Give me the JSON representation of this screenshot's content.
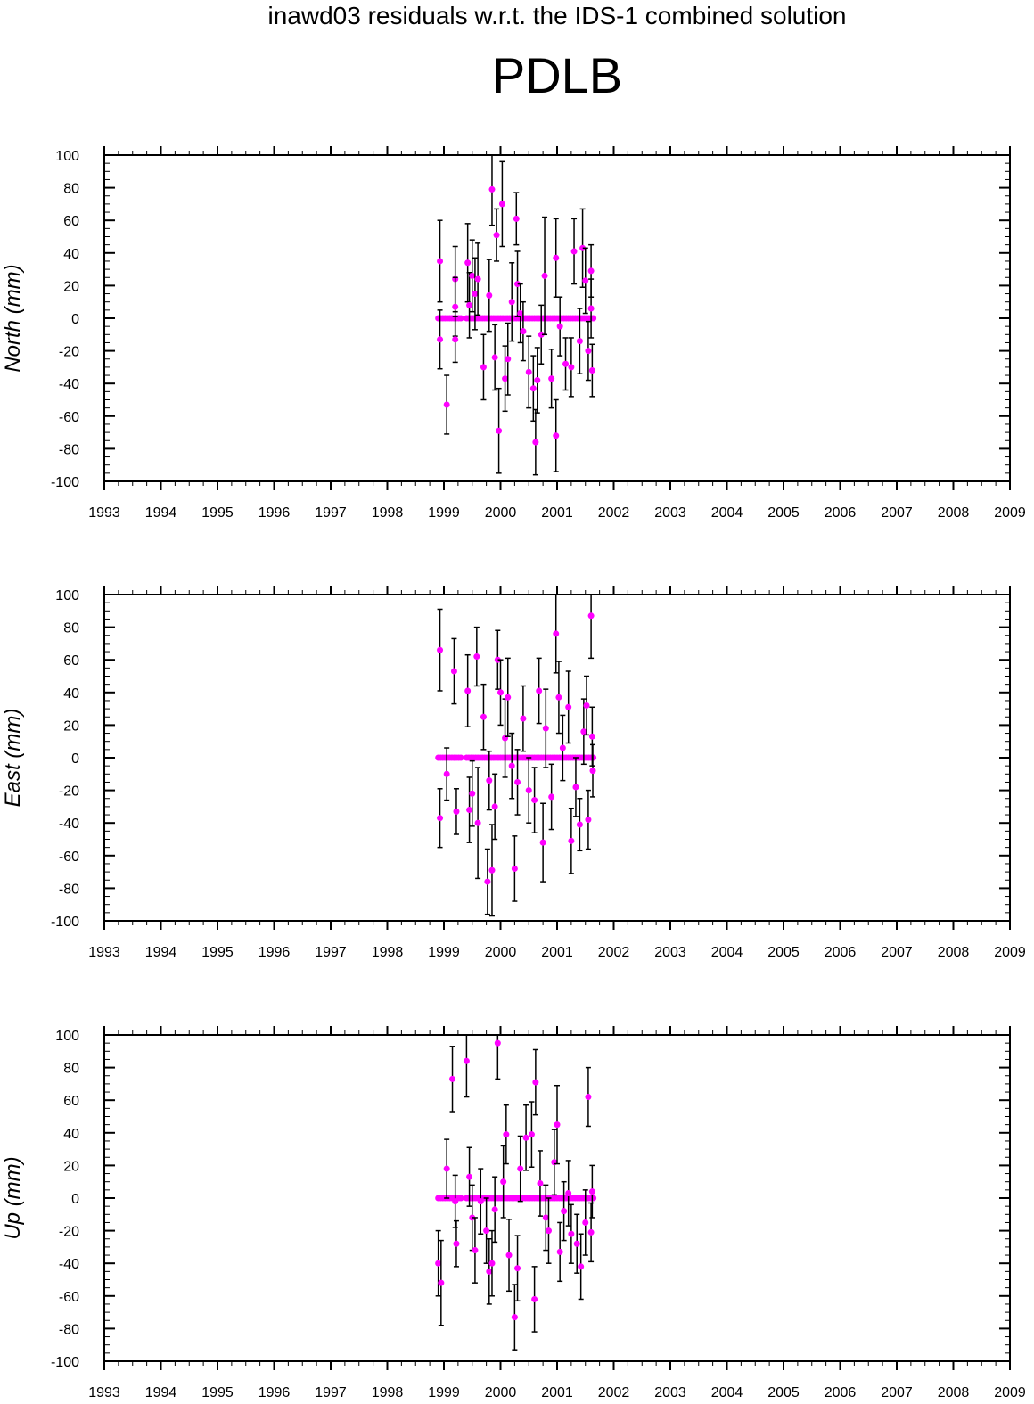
{
  "title": "inawd03 residuals w.r.t. the IDS-1 combined solution",
  "station": "PDLB",
  "colors": {
    "point": "#ff00ff",
    "errorbar": "#000000",
    "axis": "#000000"
  },
  "chart_data": [
    {
      "type": "scatter",
      "ylabel": "North (mm)",
      "xlim": [
        1993,
        2009
      ],
      "ylim": [
        -100,
        100
      ],
      "x_ticks": [
        "1993",
        "1994",
        "1995",
        "1996",
        "1997",
        "1998",
        "1999",
        "2000",
        "2001",
        "2002",
        "2003",
        "2004",
        "2005",
        "2006",
        "2007",
        "2008",
        "2009"
      ],
      "y_ticks": [
        "100",
        "80",
        "60",
        "40",
        "20",
        "0",
        "-20",
        "-40",
        "-60",
        "-80",
        "-100"
      ],
      "zero_points": {
        "x_ranges": [
          [
            1998.9,
            1999.3
          ],
          [
            1999.4,
            2001.65
          ]
        ],
        "y": 0
      },
      "points": [
        {
          "x": 1998.93,
          "y": 35,
          "err": 25
        },
        {
          "x": 1998.93,
          "y": -13,
          "err": 18
        },
        {
          "x": 1999.05,
          "y": -53,
          "err": 18
        },
        {
          "x": 1999.2,
          "y": 24,
          "err": 20
        },
        {
          "x": 1999.2,
          "y": 7,
          "err": 18
        },
        {
          "x": 1999.2,
          "y": -13,
          "err": 14
        },
        {
          "x": 1999.42,
          "y": 34,
          "err": 24
        },
        {
          "x": 1999.45,
          "y": 8,
          "err": 20
        },
        {
          "x": 1999.5,
          "y": 26,
          "err": 22
        },
        {
          "x": 1999.55,
          "y": 15,
          "err": 22
        },
        {
          "x": 1999.6,
          "y": 24,
          "err": 22
        },
        {
          "x": 1999.7,
          "y": -30,
          "err": 20
        },
        {
          "x": 1999.8,
          "y": 14,
          "err": 22
        },
        {
          "x": 1999.85,
          "y": 79,
          "err": 22
        },
        {
          "x": 1999.9,
          "y": -24,
          "err": 20
        },
        {
          "x": 1999.93,
          "y": 51,
          "err": 16
        },
        {
          "x": 1999.97,
          "y": -69,
          "err": 26
        },
        {
          "x": 2000.03,
          "y": 70,
          "err": 26
        },
        {
          "x": 2000.08,
          "y": -37,
          "err": 20
        },
        {
          "x": 2000.13,
          "y": -25,
          "err": 22
        },
        {
          "x": 2000.2,
          "y": 10,
          "err": 24
        },
        {
          "x": 2000.28,
          "y": 61,
          "err": 16
        },
        {
          "x": 2000.3,
          "y": 21,
          "err": 20
        },
        {
          "x": 2000.35,
          "y": 3,
          "err": 18
        },
        {
          "x": 2000.4,
          "y": -8,
          "err": 18
        },
        {
          "x": 2000.5,
          "y": -33,
          "err": 22
        },
        {
          "x": 2000.58,
          "y": -43,
          "err": 20
        },
        {
          "x": 2000.62,
          "y": -76,
          "err": 20
        },
        {
          "x": 2000.65,
          "y": -38,
          "err": 20
        },
        {
          "x": 2000.72,
          "y": -10,
          "err": 18
        },
        {
          "x": 2000.78,
          "y": 26,
          "err": 36
        },
        {
          "x": 2000.9,
          "y": -37,
          "err": 18
        },
        {
          "x": 2000.98,
          "y": -72,
          "err": 22
        },
        {
          "x": 2000.98,
          "y": 37,
          "err": 24
        },
        {
          "x": 2001.05,
          "y": -5,
          "err": 18
        },
        {
          "x": 2001.15,
          "y": -28,
          "err": 16
        },
        {
          "x": 2001.25,
          "y": -30,
          "err": 18
        },
        {
          "x": 2001.3,
          "y": 41,
          "err": 20
        },
        {
          "x": 2001.4,
          "y": -14,
          "err": 20
        },
        {
          "x": 2001.45,
          "y": 43,
          "err": 24
        },
        {
          "x": 2001.5,
          "y": 23,
          "err": 20
        },
        {
          "x": 2001.55,
          "y": -20,
          "err": 18
        },
        {
          "x": 2001.6,
          "y": 29,
          "err": 16
        },
        {
          "x": 2001.62,
          "y": -32,
          "err": 16
        },
        {
          "x": 2001.6,
          "y": 6,
          "err": 18
        }
      ]
    },
    {
      "type": "scatter",
      "ylabel": "East (mm)",
      "xlim": [
        1993,
        2009
      ],
      "ylim": [
        -100,
        100
      ],
      "x_ticks": [
        "1993",
        "1994",
        "1995",
        "1996",
        "1997",
        "1998",
        "1999",
        "2000",
        "2001",
        "2002",
        "2003",
        "2004",
        "2005",
        "2006",
        "2007",
        "2008",
        "2009"
      ],
      "y_ticks": [
        "100",
        "80",
        "60",
        "40",
        "20",
        "0",
        "-20",
        "-40",
        "-60",
        "-80",
        "-100"
      ],
      "zero_points": {
        "x_ranges": [
          [
            1998.9,
            1999.3
          ],
          [
            1999.4,
            2001.65
          ]
        ],
        "y": 0
      },
      "points": [
        {
          "x": 1998.93,
          "y": 66,
          "err": 25
        },
        {
          "x": 1998.93,
          "y": -37,
          "err": 18
        },
        {
          "x": 1999.05,
          "y": -10,
          "err": 16
        },
        {
          "x": 1999.18,
          "y": 53,
          "err": 20
        },
        {
          "x": 1999.22,
          "y": -33,
          "err": 14
        },
        {
          "x": 1999.42,
          "y": 41,
          "err": 22
        },
        {
          "x": 1999.45,
          "y": -32,
          "err": 20
        },
        {
          "x": 1999.5,
          "y": -22,
          "err": 20
        },
        {
          "x": 1999.58,
          "y": 62,
          "err": 18
        },
        {
          "x": 1999.6,
          "y": -40,
          "err": 34
        },
        {
          "x": 1999.7,
          "y": 25,
          "err": 20
        },
        {
          "x": 1999.77,
          "y": -76,
          "err": 20
        },
        {
          "x": 1999.8,
          "y": -14,
          "err": 18
        },
        {
          "x": 1999.85,
          "y": -69,
          "err": 28
        },
        {
          "x": 1999.9,
          "y": -30,
          "err": 20
        },
        {
          "x": 1999.95,
          "y": 60,
          "err": 18
        },
        {
          "x": 2000.0,
          "y": 40,
          "err": 20
        },
        {
          "x": 2000.08,
          "y": 12,
          "err": 24
        },
        {
          "x": 2000.13,
          "y": 37,
          "err": 24
        },
        {
          "x": 2000.2,
          "y": -5,
          "err": 20
        },
        {
          "x": 2000.25,
          "y": -68,
          "err": 20
        },
        {
          "x": 2000.3,
          "y": -15,
          "err": 20
        },
        {
          "x": 2000.4,
          "y": 24,
          "err": 20
        },
        {
          "x": 2000.5,
          "y": -20,
          "err": 20
        },
        {
          "x": 2000.6,
          "y": -26,
          "err": 20
        },
        {
          "x": 2000.68,
          "y": 41,
          "err": 20
        },
        {
          "x": 2000.75,
          "y": -52,
          "err": 24
        },
        {
          "x": 2000.8,
          "y": 18,
          "err": 24
        },
        {
          "x": 2000.9,
          "y": -24,
          "err": 20
        },
        {
          "x": 2000.98,
          "y": 76,
          "err": 24
        },
        {
          "x": 2001.03,
          "y": 37,
          "err": 22
        },
        {
          "x": 2001.1,
          "y": 6,
          "err": 20
        },
        {
          "x": 2001.2,
          "y": 31,
          "err": 22
        },
        {
          "x": 2001.25,
          "y": -51,
          "err": 20
        },
        {
          "x": 2001.33,
          "y": -18,
          "err": 18
        },
        {
          "x": 2001.4,
          "y": -41,
          "err": 16
        },
        {
          "x": 2001.47,
          "y": 16,
          "err": 20
        },
        {
          "x": 2001.52,
          "y": 32,
          "err": 18
        },
        {
          "x": 2001.55,
          "y": -38,
          "err": 18
        },
        {
          "x": 2001.6,
          "y": 87,
          "err": 26
        },
        {
          "x": 2001.62,
          "y": 13,
          "err": 18
        },
        {
          "x": 2001.63,
          "y": -8,
          "err": 16
        }
      ]
    },
    {
      "type": "scatter",
      "ylabel": "Up (mm)",
      "xlim": [
        1993,
        2009
      ],
      "ylim": [
        -100,
        100
      ],
      "x_ticks": [
        "1993",
        "1994",
        "1995",
        "1996",
        "1997",
        "1998",
        "1999",
        "2000",
        "2001",
        "2002",
        "2003",
        "2004",
        "2005",
        "2006",
        "2007",
        "2008",
        "2009"
      ],
      "y_ticks": [
        "100",
        "80",
        "60",
        "40",
        "20",
        "0",
        "-20",
        "-40",
        "-60",
        "-80",
        "-100"
      ],
      "zero_points": {
        "x_ranges": [
          [
            1998.9,
            1999.3
          ],
          [
            1999.4,
            2001.65
          ]
        ],
        "y": 0
      },
      "points": [
        {
          "x": 1998.9,
          "y": -40,
          "err": 20
        },
        {
          "x": 1998.95,
          "y": -52,
          "err": 26
        },
        {
          "x": 1999.05,
          "y": 18,
          "err": 18
        },
        {
          "x": 1999.15,
          "y": 73,
          "err": 20
        },
        {
          "x": 1999.2,
          "y": -2,
          "err": 16
        },
        {
          "x": 1999.22,
          "y": -28,
          "err": 14
        },
        {
          "x": 1999.4,
          "y": 84,
          "err": 22
        },
        {
          "x": 1999.45,
          "y": 13,
          "err": 18
        },
        {
          "x": 1999.5,
          "y": -12,
          "err": 20
        },
        {
          "x": 1999.55,
          "y": -32,
          "err": 20
        },
        {
          "x": 1999.65,
          "y": -2,
          "err": 20
        },
        {
          "x": 1999.75,
          "y": -20,
          "err": 20
        },
        {
          "x": 1999.8,
          "y": -45,
          "err": 20
        },
        {
          "x": 1999.85,
          "y": -40,
          "err": 20
        },
        {
          "x": 1999.9,
          "y": -7,
          "err": 20
        },
        {
          "x": 1999.95,
          "y": 95,
          "err": 22
        },
        {
          "x": 2000.05,
          "y": 10,
          "err": 22
        },
        {
          "x": 2000.1,
          "y": 39,
          "err": 18
        },
        {
          "x": 2000.15,
          "y": -35,
          "err": 22
        },
        {
          "x": 2000.25,
          "y": -73,
          "err": 20
        },
        {
          "x": 2000.3,
          "y": -43,
          "err": 20
        },
        {
          "x": 2000.35,
          "y": 18,
          "err": 20
        },
        {
          "x": 2000.45,
          "y": 37,
          "err": 20
        },
        {
          "x": 2000.55,
          "y": 39,
          "err": 20
        },
        {
          "x": 2000.6,
          "y": -62,
          "err": 20
        },
        {
          "x": 2000.62,
          "y": 71,
          "err": 20
        },
        {
          "x": 2000.7,
          "y": 9,
          "err": 20
        },
        {
          "x": 2000.8,
          "y": -12,
          "err": 20
        },
        {
          "x": 2000.85,
          "y": -20,
          "err": 20
        },
        {
          "x": 2000.95,
          "y": 22,
          "err": 20
        },
        {
          "x": 2001.0,
          "y": 45,
          "err": 24
        },
        {
          "x": 2001.05,
          "y": -33,
          "err": 18
        },
        {
          "x": 2001.12,
          "y": -8,
          "err": 18
        },
        {
          "x": 2001.2,
          "y": 3,
          "err": 20
        },
        {
          "x": 2001.25,
          "y": -22,
          "err": 18
        },
        {
          "x": 2001.35,
          "y": -28,
          "err": 18
        },
        {
          "x": 2001.42,
          "y": -42,
          "err": 20
        },
        {
          "x": 2001.5,
          "y": -15,
          "err": 20
        },
        {
          "x": 2001.55,
          "y": 62,
          "err": 18
        },
        {
          "x": 2001.6,
          "y": -21,
          "err": 18
        },
        {
          "x": 2001.62,
          "y": 4,
          "err": 16
        }
      ]
    }
  ]
}
